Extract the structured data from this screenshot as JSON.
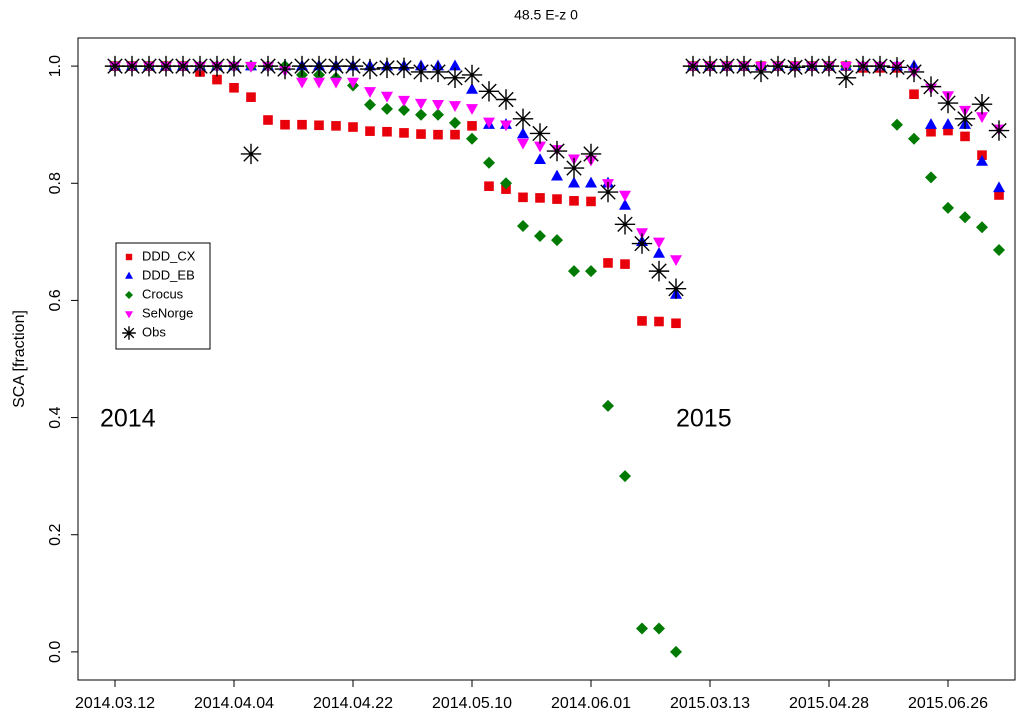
{
  "chart_data": {
    "type": "scatter",
    "title": "48.5  E-z  0",
    "y_label": "SCA [fraction]",
    "annotations": [
      "2014",
      "2015"
    ],
    "categories": [
      "2014.03.12",
      null,
      null,
      null,
      null,
      null,
      null,
      "2014.04.04",
      null,
      null,
      null,
      null,
      null,
      null,
      "2014.04.22",
      null,
      null,
      null,
      null,
      null,
      null,
      "2014.05.10",
      null,
      null,
      null,
      null,
      null,
      null,
      "2014.06.01",
      null,
      null,
      null,
      null,
      null,
      null,
      "2015.03.13",
      null,
      null,
      null,
      null,
      null,
      null,
      "2015.04.28",
      null,
      null,
      null,
      null,
      null,
      null,
      "2015.06.26",
      null,
      null,
      null
    ],
    "ylim": [
      -0.048,
      1.048
    ],
    "yticks": [
      {
        "value": 0,
        "label": "0.0"
      },
      0.2,
      0.4,
      0.6,
      0.8,
      {
        "value": 1,
        "label": "1.0"
      }
    ],
    "grid": false,
    "legend": "center left",
    "series": [
      {
        "name": "DDD_CX",
        "color": "#e8000b",
        "marker": "square",
        "values": [
          1,
          1,
          1,
          1,
          1,
          0.99,
          0.977,
          0.963,
          0.947,
          0.908,
          0.9,
          0.9,
          0.899,
          0.898,
          0.896,
          0.889,
          0.888,
          0.886,
          0.884,
          0.883,
          0.883,
          0.898,
          0.795,
          0.79,
          0.776,
          0.775,
          0.773,
          0.77,
          0.769,
          0.664,
          0.662,
          0.565,
          0.564,
          0.561,
          1,
          1,
          1,
          1,
          1,
          1,
          1,
          1,
          1,
          1,
          0.997,
          0.997,
          0.997,
          0.952,
          0.888,
          0.89,
          0.88,
          0.848,
          0.78
        ]
      },
      {
        "name": "DDD_EB",
        "color": "#0000ff",
        "marker": "triangle",
        "values": [
          1,
          1,
          1,
          1,
          1,
          1,
          1,
          1,
          1,
          1,
          1,
          1,
          1,
          1,
          1,
          1,
          1,
          1,
          1,
          1,
          1,
          0.96,
          0.9,
          0.9,
          0.884,
          0.84,
          0.812,
          0.8,
          0.8,
          0.8,
          0.762,
          0.7,
          0.68,
          0.61,
          1,
          1,
          1,
          1,
          1,
          1,
          1,
          1,
          1,
          1,
          1,
          1,
          1,
          1,
          0.9,
          0.9,
          0.9,
          0.837,
          0.792
        ]
      },
      {
        "name": "Crocus",
        "color": "#007a00",
        "marker": "diamond",
        "values": [
          1,
          1,
          1,
          1,
          1,
          1,
          1,
          1,
          1,
          1,
          1,
          0.985,
          0.985,
          0.98,
          0.967,
          0.934,
          0.927,
          0.925,
          0.917,
          0.917,
          0.903,
          0.876,
          0.835,
          0.8,
          0.727,
          0.71,
          0.703,
          0.65,
          0.65,
          0.42,
          0.3,
          0.04,
          0.04,
          0,
          1,
          1,
          1,
          1,
          1,
          1,
          1,
          1,
          1,
          1,
          1,
          1,
          0.9,
          0.876,
          0.81,
          0.758,
          0.742,
          0.725,
          0.686
        ]
      },
      {
        "name": "SeNorge",
        "color": "#ff00ff",
        "marker": "triangle-down",
        "values": [
          1,
          1,
          1,
          1,
          1,
          1,
          1,
          1,
          1,
          1,
          0.993,
          0.973,
          0.973,
          0.973,
          0.973,
          0.957,
          0.949,
          0.942,
          0.937,
          0.935,
          0.933,
          0.928,
          0.905,
          0.9,
          0.869,
          0.864,
          0.858,
          0.842,
          0.84,
          0.8,
          0.78,
          0.716,
          0.7,
          0.67,
          1,
          1,
          1,
          1,
          1,
          1,
          1,
          1,
          1,
          1,
          1,
          1,
          1,
          0.99,
          0.963,
          0.95,
          0.925,
          0.914,
          0.893
        ]
      },
      {
        "name": "Obs",
        "color": "#000000",
        "marker": "asterisk",
        "values": [
          1,
          1,
          1,
          1,
          1,
          1,
          1,
          1,
          0.85,
          1,
          0.995,
          1,
          1,
          1,
          1,
          0.995,
          0.997,
          0.997,
          0.99,
          0.99,
          0.98,
          0.985,
          0.957,
          0.943,
          0.91,
          0.885,
          0.855,
          0.826,
          0.85,
          0.785,
          0.73,
          0.697,
          0.65,
          0.62,
          1,
          1,
          1,
          1,
          0.99,
          1,
          0.998,
          1,
          1,
          0.98,
          1,
          1,
          0.998,
          0.99,
          0.965,
          0.937,
          0.91,
          0.935,
          0.89
        ]
      }
    ]
  }
}
